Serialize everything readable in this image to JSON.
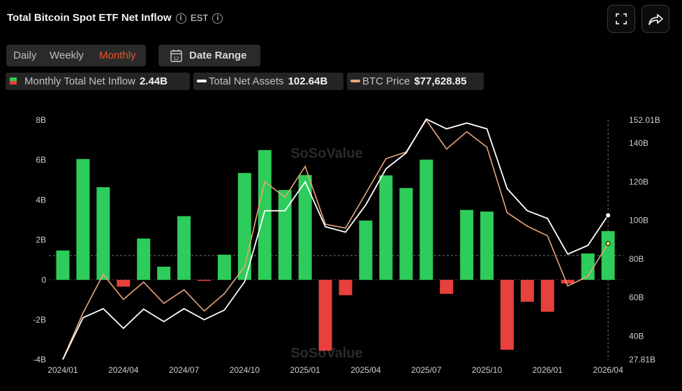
{
  "header": {
    "title": "Total Bitcoin Spot ETF Net Inflow",
    "timezone": "EST",
    "fullscreen_icon": "fullscreen-icon",
    "share_icon": "share-icon"
  },
  "period_tabs": [
    {
      "label": "Daily",
      "active": false
    },
    {
      "label": "Weekly",
      "active": false
    },
    {
      "label": "Monthly",
      "active": true
    }
  ],
  "date_range": {
    "label": "Date Range",
    "icon": "calendar-icon",
    "icon_text": "12"
  },
  "legend": {
    "inflow": {
      "label": "Monthly Total Net Inflow",
      "value": "2.44B"
    },
    "assets": {
      "label": "Total Net Assets",
      "value": "102.64B"
    },
    "price": {
      "label": "BTC Price",
      "value": "$77,628.85"
    }
  },
  "watermark": "SoSoValue",
  "colors": {
    "positive": "#2ecc5a",
    "negative": "#e8403c",
    "assets_line": "#ffffff",
    "price_line": "#e8a47a",
    "accent": "#e8542e"
  },
  "chart_data": {
    "type": "bar",
    "categories": [
      "2024/01",
      "2024/02",
      "2024/03",
      "2024/04",
      "2024/05",
      "2024/06",
      "2024/07",
      "2024/08",
      "2024/09",
      "2024/10",
      "2024/11",
      "2024/12",
      "2025/01",
      "2025/02",
      "2025/03",
      "2025/04",
      "2025/05",
      "2025/06",
      "2025/07",
      "2025/08",
      "2025/09",
      "2025/10",
      "2025/11",
      "2025/12",
      "2026/01",
      "2026/02",
      "2026/03",
      "2026/04"
    ],
    "x_tick_labels": [
      "2024/01",
      "2024/04",
      "2024/07",
      "2024/10",
      "2025/01",
      "2025/04",
      "2025/07",
      "2025/10",
      "2026/01",
      "2026/04"
    ],
    "left_axis": {
      "ticks": [
        "-4B",
        "-2B",
        "0",
        "2B",
        "4B",
        "6B",
        "8B"
      ],
      "tick_values": [
        -4,
        -2,
        0,
        2,
        4,
        6,
        8
      ],
      "range": [
        -4,
        8
      ]
    },
    "right_axis": {
      "ticks": [
        "27.81B",
        "40B",
        "60B",
        "80B",
        "100B",
        "120B",
        "140B",
        "152.01B"
      ],
      "tick_values": [
        27.81,
        40,
        60,
        80,
        100,
        120,
        140,
        152.01
      ],
      "range": [
        27.81,
        152.01
      ]
    },
    "series": [
      {
        "key": "inflow",
        "type": "bar",
        "axis": "left",
        "values": [
          1.47,
          6.05,
          4.64,
          -0.34,
          2.07,
          0.66,
          3.19,
          -0.05,
          1.26,
          5.35,
          6.5,
          4.5,
          5.25,
          -3.55,
          -0.77,
          2.97,
          5.23,
          4.6,
          6.02,
          -0.7,
          3.5,
          3.42,
          -3.5,
          -1.1,
          -1.6,
          -0.18,
          1.32,
          2.44
        ]
      },
      {
        "key": "assets",
        "type": "line",
        "axis": "right",
        "values": [
          27.81,
          49.5,
          54.2,
          44,
          54,
          47.5,
          54.2,
          48.5,
          53.5,
          68.2,
          105,
          105,
          120,
          96.7,
          93.9,
          108,
          126.7,
          135,
          152.5,
          147.5,
          150.5,
          147.5,
          116.5,
          105,
          101,
          82.5,
          87,
          102.64
        ]
      },
      {
        "key": "price",
        "type": "line",
        "axis": "right",
        "values": [
          28,
          52,
          72,
          59,
          68,
          57,
          64,
          53,
          62,
          76,
          120,
          112,
          128,
          98,
          96,
          114,
          132,
          135.5,
          152.01,
          137,
          146,
          138,
          104,
          97,
          92,
          66,
          71,
          88
        ]
      }
    ]
  }
}
